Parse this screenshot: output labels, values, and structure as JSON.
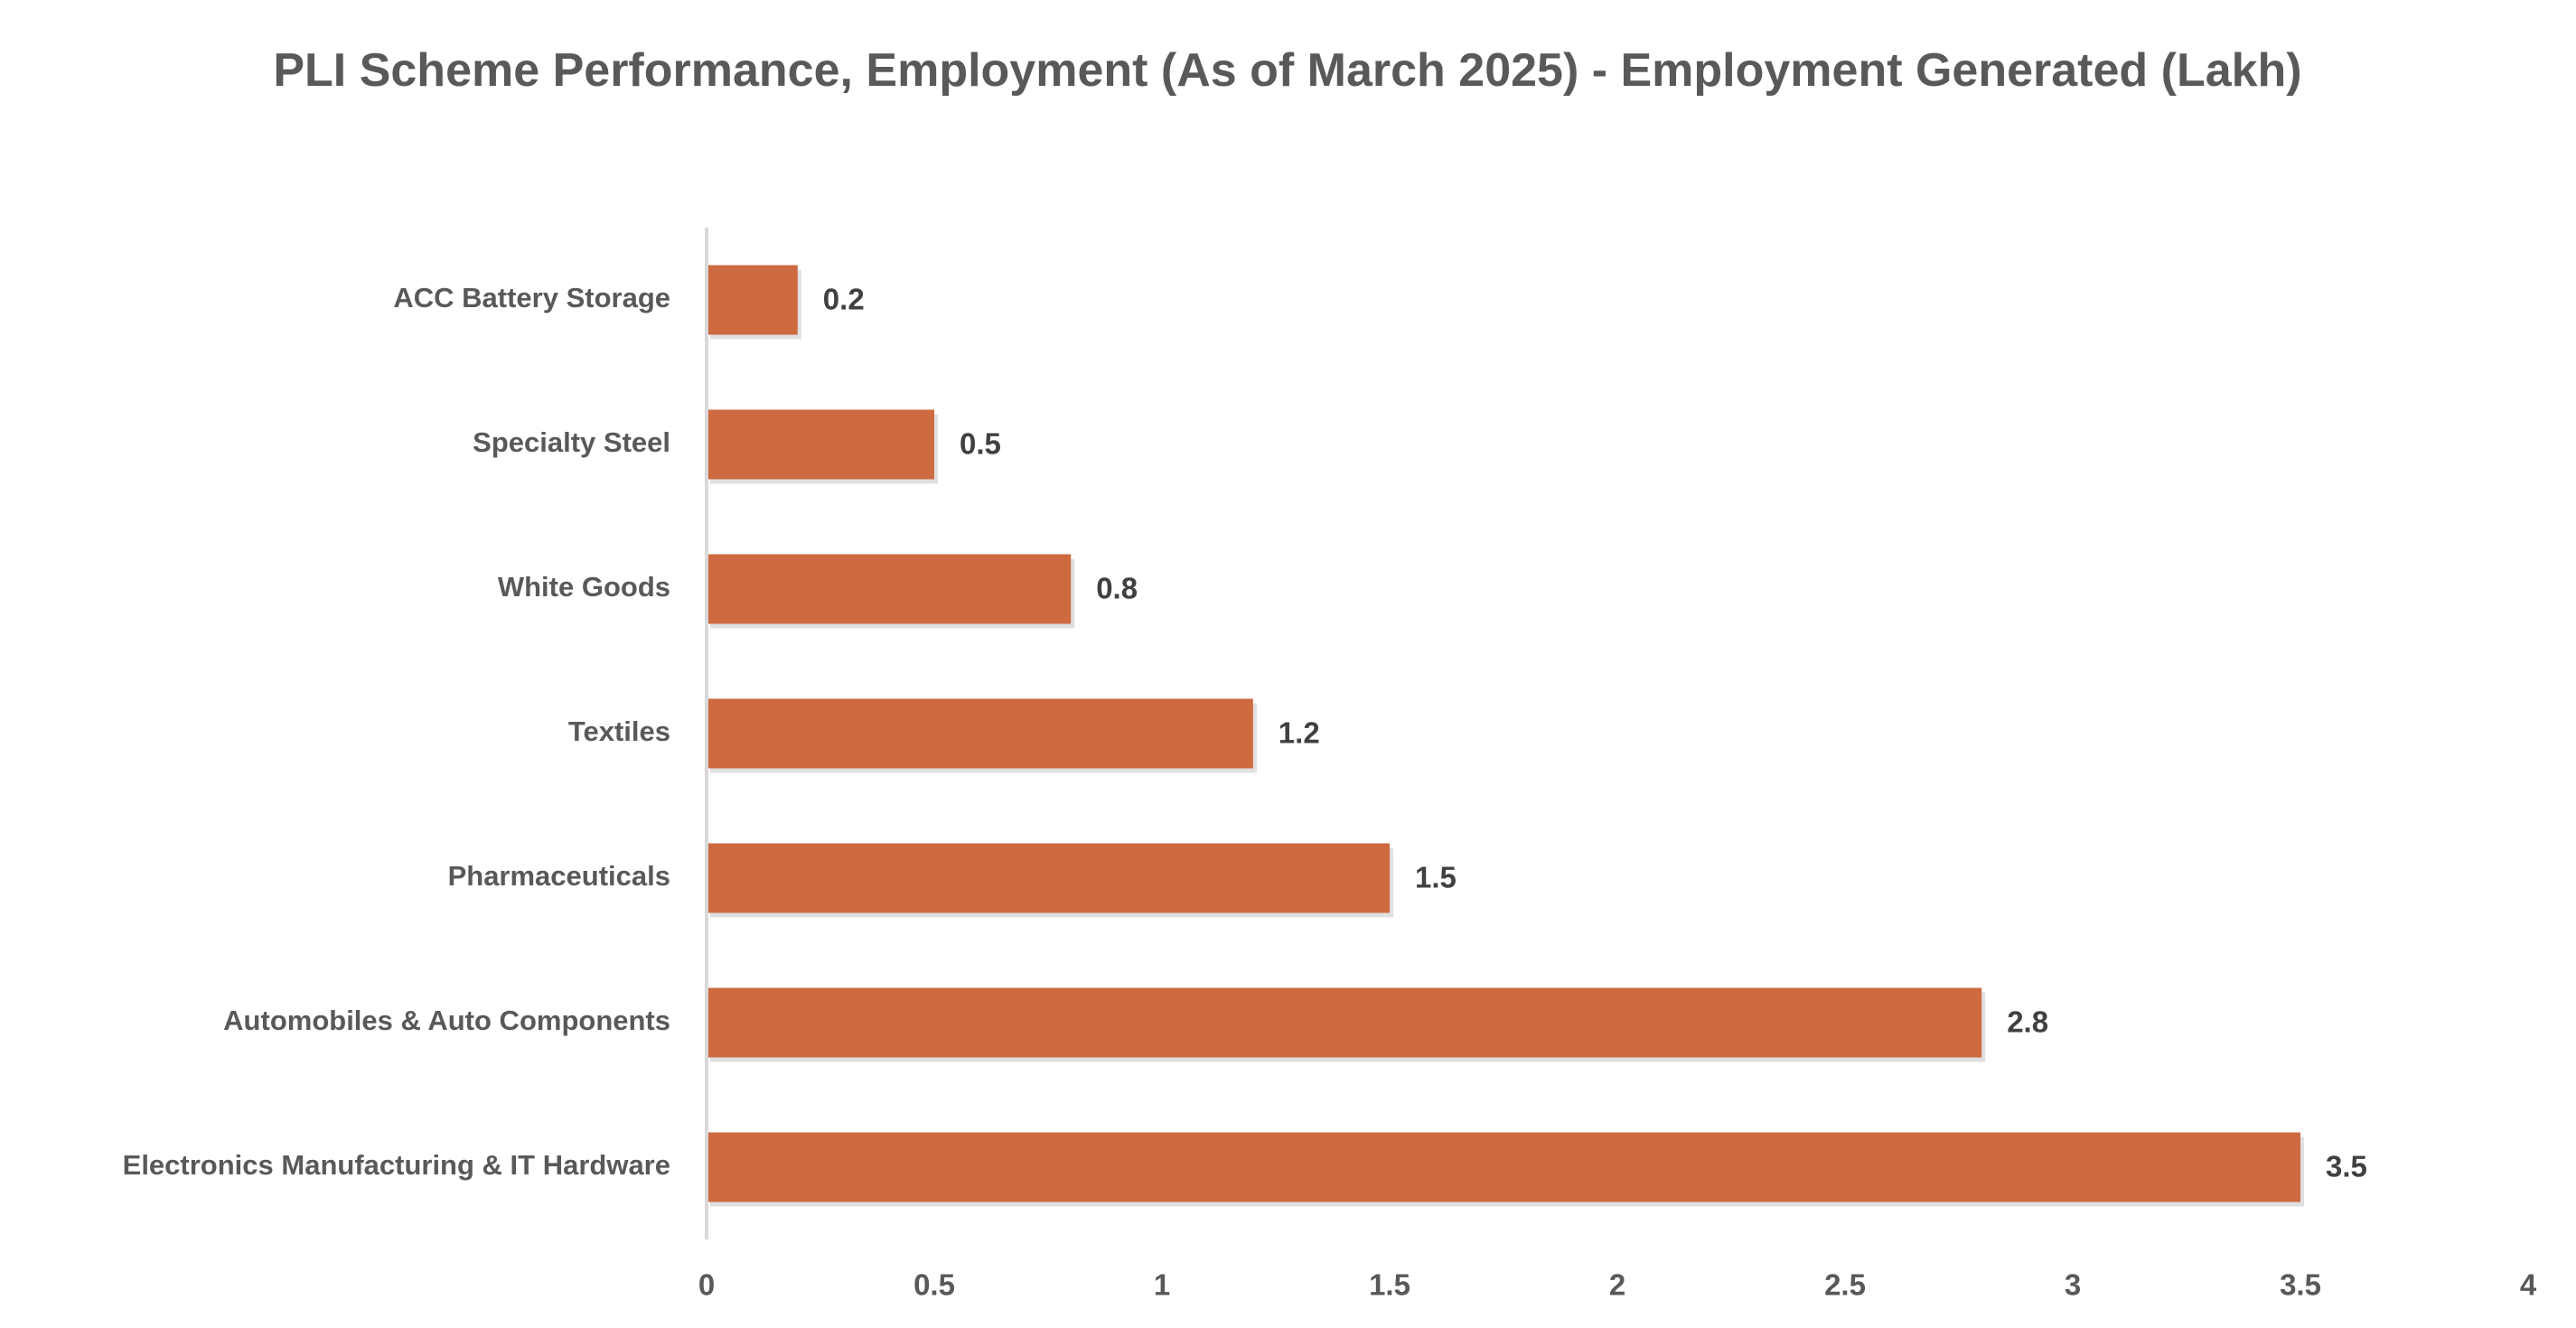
{
  "chart_data": {
    "type": "hbar",
    "title": "PLI Scheme Performance, Employment (As of March 2025) - Employment Generated (Lakh)",
    "categories": [
      "ACC Battery Storage",
      "Specialty Steel",
      "White Goods",
      "Textiles",
      "Pharmaceuticals",
      "Automobiles & Auto Components",
      "Electronics Manufacturing & IT Hardware"
    ],
    "values": [
      0.2,
      0.5,
      0.8,
      1.2,
      1.5,
      2.8,
      3.5
    ],
    "color": "#cd6a3f",
    "xlim": [
      0,
      4
    ],
    "xticks": [
      0,
      0.5,
      1,
      1.5,
      2,
      2.5,
      3,
      3.5,
      4
    ],
    "grid": false
  }
}
